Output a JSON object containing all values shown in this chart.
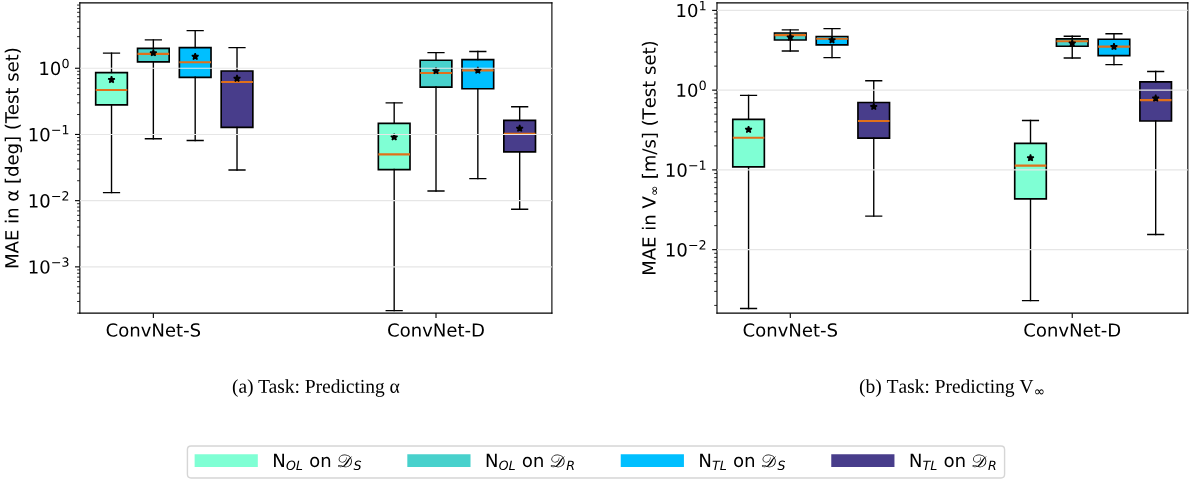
{
  "chart_data": [
    {
      "type": "box",
      "xlabel": "(a) Task: Predicting α",
      "ylabel": "MAE in α [deg] (Test set)",
      "categories": [
        "ConvNet-S",
        "ConvNet-D"
      ],
      "log": "y",
      "grid": "y",
      "ylim": [
        0.0002,
        9.7
      ],
      "yticks": [
        {
          "value": 0.001,
          "label": "10$^{−3}$"
        },
        {
          "value": 0.01,
          "label": "10$^{−2}$"
        },
        {
          "value": 0.1,
          "label": "10$^{−1}$"
        },
        {
          "value": 1,
          "label": "10$^{0}$"
        }
      ],
      "series": [
        {
          "color": "#7fffd4",
          "boxes": [
            {
              "low": 0.0132,
              "q1": 0.28,
              "median": 0.47,
              "q3": 0.86,
              "high": 1.69,
              "mean": 0.67
            },
            {
              "low": 0.000218,
              "q1": 0.0295,
              "median": 0.05,
              "q3": 0.147,
              "high": 0.3,
              "mean": 0.091
            }
          ]
        },
        {
          "color": "#48d1cc",
          "boxes": [
            {
              "low": 0.086,
              "q1": 1.25,
              "median": 1.65,
              "q3": 2.0,
              "high": 2.68,
              "mean": 1.7
            },
            {
              "low": 0.014,
              "q1": 0.52,
              "median": 0.85,
              "q3": 1.32,
              "high": 1.72,
              "mean": 0.91
            }
          ]
        },
        {
          "color": "#00bfff",
          "boxes": [
            {
              "low": 0.081,
              "q1": 0.73,
              "median": 1.23,
              "q3": 2.05,
              "high": 3.7,
              "mean": 1.5
            },
            {
              "low": 0.0215,
              "q1": 0.49,
              "median": 0.93,
              "q3": 1.35,
              "high": 1.79,
              "mean": 0.93
            }
          ]
        },
        {
          "color": "#483d8b",
          "boxes": [
            {
              "low": 0.029,
              "q1": 0.128,
              "median": 0.62,
              "q3": 0.91,
              "high": 2.05,
              "mean": 0.7
            },
            {
              "low": 0.0074,
              "q1": 0.0545,
              "median": 0.102,
              "q3": 0.163,
              "high": 0.262,
              "mean": 0.123
            }
          ]
        }
      ]
    },
    {
      "type": "box",
      "xlabel": "(b) Task: Predicting V$_{∞}$",
      "ylabel": "MAE in V$_{∞}$ [m/s] (Test set)",
      "categories": [
        "ConvNet-S",
        "ConvNet-D"
      ],
      "log": "y",
      "grid": "y",
      "ylim": [
        0.0016,
        12.4
      ],
      "legend": "bottom",
      "yticks": [
        {
          "value": 0.01,
          "label": "10$^{−2}$"
        },
        {
          "value": 0.1,
          "label": "10$^{−1}$"
        },
        {
          "value": 1,
          "label": "10$^{0}$"
        },
        {
          "value": 10,
          "label": "10$^{1}$"
        }
      ],
      "series": [
        {
          "name": "N$_{OL}$ on 𝒟$_{S}$",
          "color": "#7fffd4",
          "boxes": [
            {
              "low": 0.00183,
              "q1": 0.109,
              "median": 0.253,
              "q3": 0.43,
              "high": 0.86,
              "mean": 0.32
            },
            {
              "low": 0.0023,
              "q1": 0.0434,
              "median": 0.113,
              "q3": 0.215,
              "high": 0.417,
              "mean": 0.141
            }
          ]
        },
        {
          "name": "N$_{OL}$ on 𝒟$_{R}$",
          "color": "#48d1cc",
          "boxes": [
            {
              "low": 3.1,
              "q1": 4.25,
              "median": 4.9,
              "q3": 5.2,
              "high": 5.7,
              "mean": 4.6
            },
            {
              "low": 2.53,
              "q1": 3.55,
              "median": 4.1,
              "q3": 4.4,
              "high": 4.73,
              "mean": 3.87
            }
          ]
        },
        {
          "name": "N$_{TL}$ on 𝒟$_{S}$",
          "color": "#00bfff",
          "boxes": [
            {
              "low": 2.56,
              "q1": 3.7,
              "median": 4.4,
              "q3": 4.7,
              "high": 5.9,
              "mean": 4.25
            },
            {
              "low": 2.09,
              "q1": 2.71,
              "median": 3.51,
              "q3": 4.34,
              "high": 5.1,
              "mean": 3.5
            }
          ]
        },
        {
          "name": "N$_{TL}$ on 𝒟$_{R}$",
          "color": "#483d8b",
          "boxes": [
            {
              "low": 0.0263,
              "q1": 0.25,
              "median": 0.41,
              "q3": 0.7,
              "high": 1.31,
              "mean": 0.62
            },
            {
              "low": 0.0155,
              "q1": 0.41,
              "median": 0.75,
              "q3": 1.27,
              "high": 1.71,
              "mean": 0.79
            }
          ]
        }
      ]
    }
  ]
}
